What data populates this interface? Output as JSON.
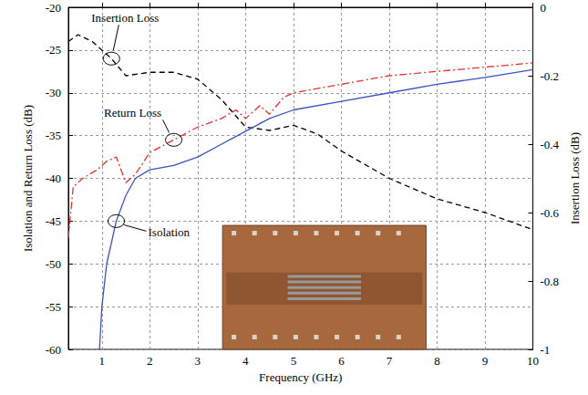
{
  "chart_data": {
    "type": "line",
    "x_label": "Frequency (GHz)",
    "y_label": "Isolation and Return Loss (dB)",
    "y2_label": "Insertion Loss (dB)",
    "xlim": [
      0.3,
      10
    ],
    "xticks": [
      1,
      2,
      3,
      4,
      5,
      6,
      7,
      8,
      9,
      10
    ],
    "ylim": [
      -60,
      -20
    ],
    "yticks": [
      -60,
      -55,
      -50,
      -45,
      -40,
      -35,
      -30,
      -25,
      -20
    ],
    "y2lim": [
      -1,
      0
    ],
    "y2ticks": [
      -1,
      -0.8,
      -0.6,
      -0.4,
      -0.2,
      0
    ],
    "grid": true,
    "series": [
      {
        "name": "Insertion Loss",
        "axis": "y2",
        "color": "#000000",
        "line_style": "dashed",
        "x": [
          0.3,
          0.5,
          0.8,
          1.2,
          1.5,
          2,
          2.5,
          3,
          3.5,
          4,
          4.5,
          5,
          5.5,
          6,
          7,
          8,
          9,
          10
        ],
        "values": [
          -0.1,
          -0.08,
          -0.1,
          -0.15,
          -0.2,
          -0.19,
          -0.19,
          -0.21,
          -0.27,
          -0.35,
          -0.36,
          -0.345,
          -0.37,
          -0.42,
          -0.5,
          -0.56,
          -0.6,
          -0.65
        ]
      },
      {
        "name": "Return Loss",
        "color": "#e8312f",
        "line_style": "dashdot",
        "x": [
          0.3,
          0.4,
          0.6,
          0.9,
          1.1,
          1.3,
          1.5,
          1.7,
          2,
          2.5,
          3,
          3.5,
          3.8,
          4,
          4.3,
          4.5,
          4.8,
          5,
          6,
          7,
          8,
          9,
          10
        ],
        "values": [
          -47,
          -41,
          -40,
          -39,
          -38,
          -37.5,
          -40.5,
          -39.5,
          -37,
          -35.5,
          -34,
          -33,
          -32,
          -33,
          -31.5,
          -32.5,
          -30.5,
          -30,
          -29,
          -28,
          -27.5,
          -27,
          -26.5
        ]
      },
      {
        "name": "Isolation",
        "color": "#3b52c4",
        "line_style": "solid",
        "x": [
          0.95,
          1,
          1.1,
          1.3,
          1.5,
          1.7,
          2,
          2.5,
          3,
          3.5,
          4,
          4.5,
          5,
          6,
          7,
          8,
          9,
          10
        ],
        "values": [
          -60,
          -55,
          -50,
          -45,
          -42,
          -40,
          -39,
          -38.5,
          -37.5,
          -36,
          -34.5,
          -33,
          -32,
          -31,
          -30,
          -29,
          -28.2,
          -27.3
        ]
      }
    ]
  }
}
